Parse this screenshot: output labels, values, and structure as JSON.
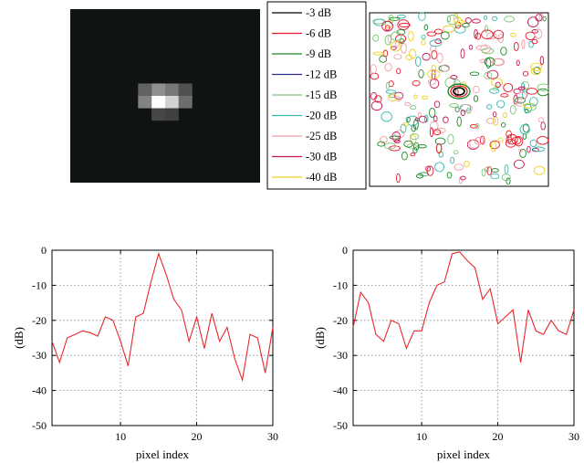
{
  "chart_data": [
    {
      "type": "heatmap",
      "description_id": "psf-image",
      "grid_size": [
        14,
        14
      ],
      "peak_cell": [
        7,
        6
      ],
      "cells": [
        {
          "row": 6,
          "col": 5,
          "value": 0.3
        },
        {
          "row": 6,
          "col": 6,
          "value": 0.5
        },
        {
          "row": 6,
          "col": 7,
          "value": 0.4
        },
        {
          "row": 6,
          "col": 8,
          "value": 0.22
        },
        {
          "row": 7,
          "col": 5,
          "value": 0.45
        },
        {
          "row": 7,
          "col": 6,
          "value": 1.0
        },
        {
          "row": 7,
          "col": 7,
          "value": 0.8
        },
        {
          "row": 7,
          "col": 8,
          "value": 0.35
        },
        {
          "row": 8,
          "col": 6,
          "value": 0.18
        },
        {
          "row": 8,
          "col": 7,
          "value": 0.15
        }
      ]
    },
    {
      "type": "contour",
      "legend": [
        {
          "label": "-3 dB",
          "color": "#000000"
        },
        {
          "label": "-6 dB",
          "color": "#e8182a"
        },
        {
          "label": "-9 dB",
          "color": "#1e8a2a"
        },
        {
          "label": "-12 dB",
          "color": "#2a2a8a"
        },
        {
          "label": "-15 dB",
          "color": "#7cc878"
        },
        {
          "label": "-20 dB",
          "color": "#3ab8b0"
        },
        {
          "label": "-25 dB",
          "color": "#f0a0a8"
        },
        {
          "label": "-30 dB",
          "color": "#c8185a"
        },
        {
          "label": "-40 dB",
          "color": "#f0d020"
        }
      ]
    },
    {
      "type": "line",
      "xlabel": "pixel index",
      "ylabel": "(dB)",
      "xlim": [
        1,
        30
      ],
      "ylim": [
        -50,
        0
      ],
      "xticks": [
        10,
        20,
        30
      ],
      "yticks": [
        0,
        -10,
        -20,
        -30,
        -40,
        -50
      ],
      "grid": true,
      "series": [
        {
          "color": "#e8282a",
          "x": [
            1,
            2,
            3,
            4,
            5,
            6,
            7,
            8,
            9,
            10,
            11,
            12,
            13,
            14,
            15,
            16,
            17,
            18,
            19,
            20,
            21,
            22,
            23,
            24,
            25,
            26,
            27,
            28,
            29,
            30
          ],
          "y": [
            -26,
            -32,
            -25,
            -24,
            -23,
            -23.5,
            -24.5,
            -19,
            -20,
            -26,
            -33,
            -19,
            -18,
            -9,
            -1,
            -7,
            -14,
            -17,
            -26,
            -19,
            -28,
            -18,
            -26,
            -22,
            -31,
            -37,
            -24,
            -25,
            -35,
            -22
          ]
        }
      ]
    },
    {
      "type": "line",
      "xlabel": "pixel index",
      "ylabel": "(dB)",
      "xlim": [
        1,
        30
      ],
      "ylim": [
        -50,
        0
      ],
      "xticks": [
        10,
        20,
        30
      ],
      "yticks": [
        0,
        -10,
        -20,
        -30,
        -40,
        -50
      ],
      "grid": true,
      "series": [
        {
          "color": "#e8282a",
          "x": [
            1,
            2,
            3,
            4,
            5,
            6,
            7,
            8,
            9,
            10,
            11,
            12,
            13,
            14,
            15,
            16,
            17,
            18,
            19,
            20,
            21,
            22,
            23,
            24,
            25,
            26,
            27,
            28,
            29,
            30
          ],
          "y": [
            -22,
            -12,
            -15,
            -24,
            -26,
            -20,
            -21,
            -28,
            -23,
            -23,
            -15,
            -10,
            -9,
            -1,
            -0.5,
            -3,
            -5,
            -14,
            -11,
            -21,
            -19,
            -17,
            -32,
            -17,
            -23,
            -24,
            -20,
            -23,
            -24,
            -17
          ]
        }
      ]
    }
  ]
}
